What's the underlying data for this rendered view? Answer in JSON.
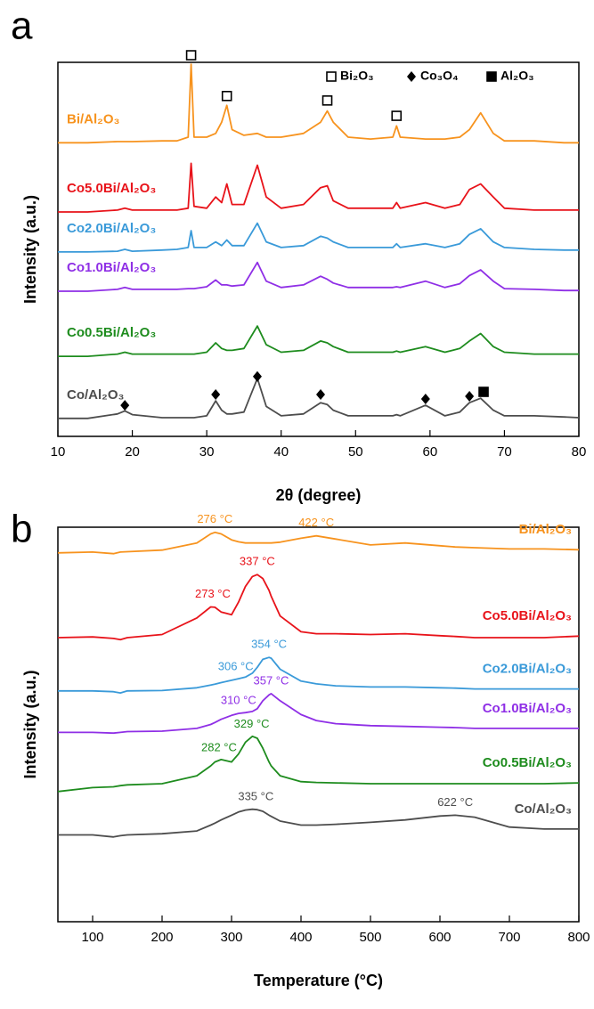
{
  "chart_data": [
    {
      "type": "line",
      "panel": "a",
      "x_label": "2θ (degree)",
      "y_label": "Intensity (a.u.)",
      "xlim": [
        10,
        80
      ],
      "xticks": [
        10,
        20,
        30,
        40,
        50,
        60,
        70,
        80
      ],
      "ylim": [
        0,
        100
      ],
      "x": [
        10,
        14,
        18,
        19,
        20,
        24,
        26,
        27.5,
        27.9,
        28.3,
        30,
        31.2,
        32,
        32.7,
        33.4,
        35,
        36.8,
        38,
        40,
        43,
        45.3,
        46.2,
        47,
        49,
        52,
        55,
        55.5,
        56,
        59.4,
        62,
        64,
        65.3,
        66.8,
        68.5,
        70,
        74,
        78,
        80
      ],
      "series": [
        {
          "name": "Bi/Al₂O₃",
          "color": "#f7931e",
          "values": [
            78.5,
            78.5,
            78.8,
            78.8,
            78.8,
            79,
            79,
            80,
            99.5,
            80,
            80,
            81,
            84,
            88.5,
            82,
            80.5,
            81,
            80,
            80,
            81,
            84,
            87,
            84,
            80,
            79.5,
            80,
            83,
            80,
            79.5,
            79.5,
            80,
            82,
            86.5,
            81,
            79,
            79,
            78.5,
            78.5
          ]
        },
        {
          "name": "Co5.0Bi/Al₂O₃",
          "color": "#e8131a",
          "values": [
            60,
            60,
            60.5,
            61,
            60.5,
            60.5,
            60.5,
            61,
            73,
            61.5,
            61,
            64,
            62.5,
            67.5,
            62,
            62,
            72.5,
            64,
            61,
            62,
            66.5,
            67,
            63,
            61,
            61,
            61,
            62.5,
            61,
            62.5,
            61,
            62,
            66,
            67.5,
            64,
            61,
            60.5,
            60.5,
            60.5
          ]
        },
        {
          "name": "Co2.0Bi/Al₂O₃",
          "color": "#3a9ad9",
          "values": [
            49.3,
            49.3,
            49.5,
            50,
            49.5,
            49.8,
            50,
            50.5,
            55,
            50.5,
            50.5,
            52,
            51,
            52.5,
            51,
            51,
            57,
            52,
            50.5,
            51,
            53.5,
            53,
            52,
            50.5,
            50.5,
            50.5,
            51.5,
            50.5,
            51.5,
            50.5,
            51.5,
            54,
            55.5,
            52,
            50.5,
            50,
            49.8,
            49.8
          ]
        },
        {
          "name": "Co1.0Bi/Al₂O₃",
          "color": "#8f2fe6",
          "values": [
            38.8,
            38.8,
            39.3,
            39.8,
            39.3,
            39.3,
            39.3,
            39.5,
            39.5,
            39.5,
            40,
            41.8,
            40.5,
            40.5,
            40.2,
            40.5,
            46.5,
            41.5,
            39.8,
            40.5,
            42.8,
            42,
            41,
            39.8,
            39.8,
            39.8,
            40,
            39.8,
            41.5,
            39.8,
            40.8,
            43,
            44.5,
            41.5,
            39.5,
            39.3,
            39,
            39
          ]
        },
        {
          "name": "Co0.5Bi/Al₂O₃",
          "color": "#1e8c1e",
          "values": [
            21.4,
            21.4,
            22,
            22.5,
            22,
            22,
            22,
            22,
            22,
            22,
            22.5,
            25,
            23.5,
            23,
            23,
            23.5,
            29.5,
            24.5,
            22.5,
            23,
            25.5,
            25,
            24,
            22.5,
            22.5,
            22.5,
            22.8,
            22.5,
            24,
            22.5,
            23.5,
            25.5,
            27.5,
            24,
            22.5,
            22,
            22,
            22
          ]
        },
        {
          "name": "Co/Al₂O₃",
          "color": "#4d4d4d",
          "values": [
            4.8,
            4.8,
            6,
            6.8,
            5.8,
            5,
            5,
            5,
            5,
            5,
            5.5,
            9.5,
            7,
            6,
            6,
            6.5,
            15.5,
            8,
            5.5,
            6,
            9,
            8.5,
            7,
            5.5,
            5.5,
            5.5,
            5.8,
            5.5,
            8.3,
            5.5,
            6.5,
            9,
            10.2,
            7,
            5.5,
            5.5,
            5.2,
            5
          ]
        }
      ],
      "phases": [
        {
          "name": "Bi₂O₃",
          "marker": "open-square",
          "x": [
            27.9,
            32.7,
            46.2,
            55.5
          ],
          "y": [
            101.9,
            91,
            89.8,
            85.7
          ]
        },
        {
          "name": "Co₃O₄",
          "marker": "diamond",
          "x": [
            19,
            31.2,
            36.8,
            45.3,
            59.4,
            65.3
          ],
          "y": [
            8.3,
            11.2,
            16,
            11.2,
            10,
            10.7
          ]
        },
        {
          "name": "Al₂O₃",
          "marker": "filled-square",
          "x": [
            67.2
          ],
          "y": [
            11.9
          ]
        }
      ]
    },
    {
      "type": "line",
      "panel": "b",
      "x_label": "Temperature (°C)",
      "y_label": "Intensity (a.u.)",
      "xlim": [
        50,
        800
      ],
      "xticks": [
        100,
        200,
        300,
        400,
        500,
        600,
        700,
        800
      ],
      "ylim": [
        0,
        100
      ],
      "x": [
        50,
        100,
        130,
        140,
        150,
        200,
        250,
        270,
        276,
        285,
        300,
        310,
        320,
        330,
        337,
        345,
        354,
        357,
        370,
        400,
        422,
        450,
        500,
        550,
        600,
        622,
        650,
        700,
        750,
        800
      ],
      "series": [
        {
          "name": "Bi/Al₂O₃",
          "color": "#f7931e",
          "values": [
            93.5,
            93.7,
            93.3,
            93.7,
            93.8,
            94.2,
            96,
            98.3,
            98.7,
            98.3,
            96.8,
            96.3,
            96,
            96,
            96,
            96,
            96,
            96,
            96.2,
            97.2,
            97.8,
            97,
            95.5,
            96,
            95.3,
            95,
            94.8,
            94.5,
            94.5,
            94.3
          ],
          "peaks": [
            {
              "value": 276,
              "label": "276 °C"
            },
            {
              "value": 422,
              "label": "422 °C"
            }
          ]
        },
        {
          "name": "Co5.0Bi/Al₂O₃",
          "color": "#e8131a",
          "values": [
            72,
            72.2,
            71.8,
            71.5,
            72,
            72.8,
            77,
            79.8,
            79.7,
            78.5,
            77.8,
            81,
            85,
            87.5,
            88,
            87,
            84,
            82.5,
            77.5,
            73.5,
            73,
            73,
            72.8,
            73,
            72.5,
            72.3,
            72,
            72,
            72,
            72.4
          ],
          "peaks": [
            {
              "value": 273,
              "label": "273 °C"
            },
            {
              "value": 337,
              "label": "337 °C"
            }
          ]
        },
        {
          "name": "Co2.0Bi/Al₂O₃",
          "color": "#3a9ad9",
          "values": [
            58.5,
            58.5,
            58.3,
            58,
            58.5,
            58.6,
            59.3,
            60,
            60.2,
            60.6,
            61.2,
            61.6,
            62,
            63,
            64.5,
            66.5,
            67,
            66.8,
            64,
            61,
            60.3,
            59.8,
            59.5,
            59.5,
            59.3,
            59.2,
            59,
            59,
            59,
            59
          ],
          "peaks": [
            {
              "value": 306,
              "label": "306 °C"
            },
            {
              "value": 354,
              "label": "354 °C"
            }
          ]
        },
        {
          "name": "Co1.0Bi/Al₂O₃",
          "color": "#8f2fe6",
          "values": [
            48,
            48,
            47.8,
            48,
            48.2,
            48.3,
            49,
            50,
            50.5,
            51.3,
            52.3,
            52.8,
            53,
            53.3,
            54,
            56,
            57.5,
            57.8,
            56,
            52.5,
            51,
            50.2,
            49.7,
            49.5,
            49.3,
            49.2,
            49,
            49,
            49,
            49
          ],
          "peaks": [
            {
              "value": 310,
              "label": "310 °C"
            },
            {
              "value": 357,
              "label": "357 °C"
            }
          ]
        },
        {
          "name": "Co0.5Bi/Al₂O₃",
          "color": "#1e8c1e",
          "values": [
            33,
            34,
            34.2,
            34.5,
            34.7,
            35,
            37,
            39.5,
            40.5,
            41.1,
            40.5,
            42.5,
            45.5,
            47,
            46.5,
            44,
            40.5,
            39.5,
            37,
            35.5,
            35.3,
            35.2,
            35,
            35,
            35,
            35,
            35,
            35,
            35,
            35.2
          ],
          "peaks": [
            {
              "value": 282,
              "label": "282 °C"
            },
            {
              "value": 329,
              "label": "329 °C"
            }
          ]
        },
        {
          "name": "Co/Al₂O₃",
          "color": "#4d4d4d",
          "values": [
            22,
            22,
            21.5,
            21.8,
            22,
            22.3,
            23,
            24.5,
            25,
            25.8,
            27,
            27.8,
            28.3,
            28.5,
            28.4,
            28,
            27,
            26.7,
            25.5,
            24.5,
            24.5,
            24.7,
            25.2,
            25.8,
            26.8,
            27,
            26.5,
            24,
            23.5,
            23.5
          ],
          "peaks": [
            {
              "value": 335,
              "label": "335 °C"
            },
            {
              "value": 622,
              "label": "622 °C"
            }
          ]
        }
      ]
    }
  ]
}
